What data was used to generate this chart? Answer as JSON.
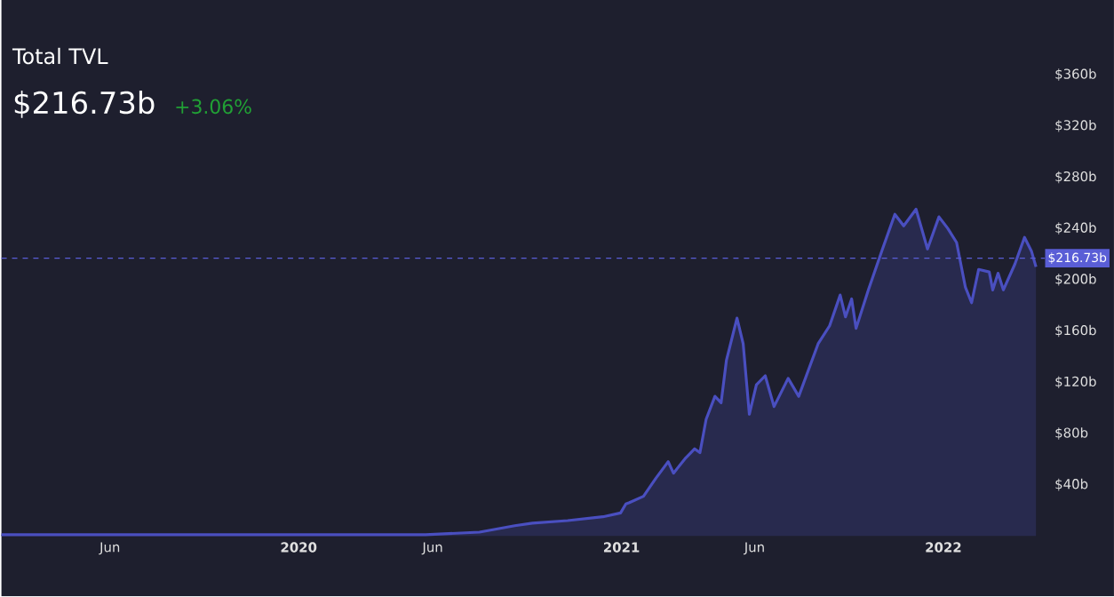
{
  "chart_data": {
    "type": "area",
    "title": "Total TVL",
    "subtitle": "$216.73b",
    "annotations": [
      "+3.06%"
    ],
    "x": [
      "2019-01-29",
      "2019-06-01",
      "2019-12-01",
      "2020-03-01",
      "2020-05-24",
      "2020-07-24",
      "2020-09-02",
      "2020-09-22",
      "2020-11-01",
      "2020-12-11",
      "2020-12-31",
      "2021-01-06",
      "2021-01-10",
      "2021-01-26",
      "2021-02-09",
      "2021-02-23",
      "2021-03-01",
      "2021-03-15",
      "2021-03-25",
      "2021-03-31",
      "2021-04-07",
      "2021-04-17",
      "2021-04-24",
      "2021-04-30",
      "2021-05-12",
      "2021-05-19",
      "2021-05-26",
      "2021-06-03",
      "2021-06-13",
      "2021-06-23",
      "2021-07-09",
      "2021-07-21",
      "2021-08-12",
      "2021-08-25",
      "2021-09-06",
      "2021-09-12",
      "2021-09-19",
      "2021-09-24",
      "2021-10-08",
      "2021-10-24",
      "2021-11-07",
      "2021-11-17",
      "2021-12-01",
      "2021-12-14",
      "2021-12-27",
      "2022-01-06",
      "2022-01-16",
      "2022-01-26",
      "2022-02-02",
      "2022-02-10",
      "2022-02-22",
      "2022-02-26",
      "2022-03-04",
      "2022-03-10",
      "2022-03-23",
      "2022-04-03",
      "2022-04-11",
      "2022-04-16"
    ],
    "series": [
      {
        "color": "#4a4fc0",
        "values": [
          1,
          1,
          1,
          1,
          1,
          3,
          8,
          10,
          12,
          15,
          18,
          25,
          26,
          31,
          45,
          58,
          49,
          61,
          68,
          65,
          91,
          109,
          104,
          137,
          170,
          150,
          95,
          118,
          125,
          101,
          123,
          109,
          150,
          164,
          188,
          171,
          185,
          162,
          192,
          224,
          251,
          242,
          255,
          224,
          249,
          240,
          229,
          194,
          182,
          208,
          206,
          192,
          205,
          192,
          212,
          233,
          222,
          210
        ]
      }
    ],
    "xlim": [
      "2019-01-29",
      "2022-04-26"
    ],
    "ylim": [
      0,
      360
    ],
    "xticks": [
      {
        "value": "2019-06-01",
        "label": "Jun"
      },
      {
        "value": "2020-01-01",
        "label": "2020"
      },
      {
        "value": "2020-06-01",
        "label": "Jun"
      },
      {
        "value": "2021-01-01",
        "label": "2021"
      },
      {
        "value": "2021-06-01",
        "label": "Jun"
      },
      {
        "value": "2022-01-01",
        "label": "2022"
      }
    ],
    "yticks": [
      {
        "value": 40,
        "label": "$40b"
      },
      {
        "value": 80,
        "label": "$80b"
      },
      {
        "value": 120,
        "label": "$120b"
      },
      {
        "value": 160,
        "label": "$160b"
      },
      {
        "value": 200,
        "label": "$200b"
      },
      {
        "value": 240,
        "label": "$240b"
      },
      {
        "value": 280,
        "label": "$280b"
      },
      {
        "value": 320,
        "label": "$320b"
      },
      {
        "value": 360,
        "label": "$360b"
      }
    ],
    "ref_lines": [
      {
        "axis": "y",
        "value": 216.73,
        "label": "$216.73b",
        "color": "#5a5ed6",
        "line_style": "dashed"
      }
    ]
  }
}
